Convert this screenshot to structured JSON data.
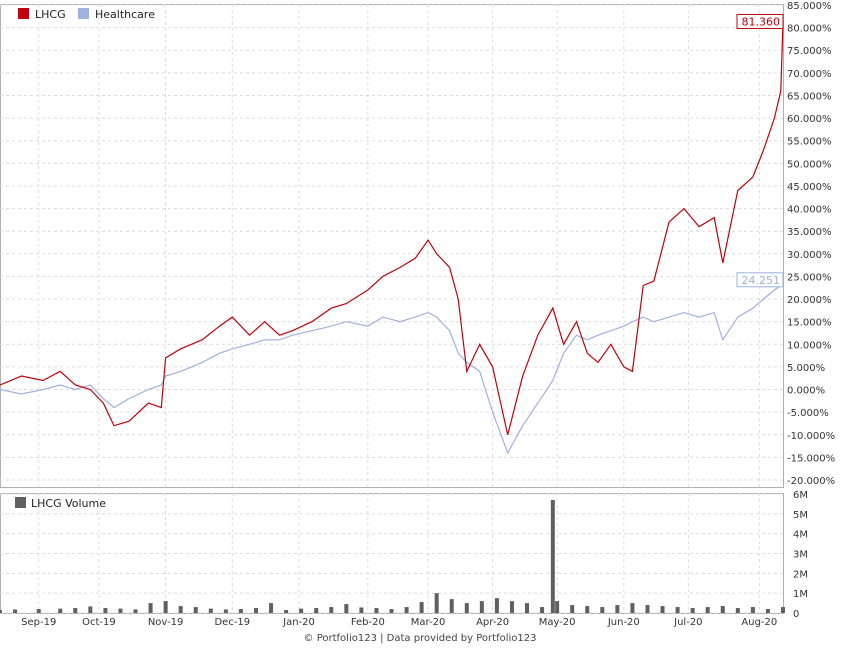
{
  "chart_data": [
    {
      "type": "line",
      "legend_position": "top-left",
      "grid": true,
      "y_format": "percent",
      "ylim": [
        -20,
        85
      ],
      "y_ticks": [
        85,
        80,
        75,
        70,
        65,
        60,
        55,
        50,
        45,
        40,
        35,
        30,
        25,
        20,
        15,
        10,
        5,
        0,
        -5,
        -10,
        -15,
        -20
      ],
      "y_tick_labels": [
        "85.000%",
        "80.000%",
        "75.000%",
        "70.000%",
        "65.000%",
        "60.000%",
        "55.000%",
        "50.000%",
        "45.000%",
        "40.000%",
        "35.000%",
        "30.000%",
        "25.000%",
        "20.000%",
        "15.000%",
        "10.000%",
        "5.000%",
        "0.000%",
        "-5.000%",
        "-10.000%",
        "-15.000%",
        "-20.000%"
      ],
      "x_range": [
        "2019-08-16",
        "2020-08-14"
      ],
      "x_ticks": [
        "2019-09-03",
        "2019-10-01",
        "2019-11-01",
        "2019-12-02",
        "2020-01-02",
        "2020-02-03",
        "2020-03-02",
        "2020-04-01",
        "2020-05-01",
        "2020-06-01",
        "2020-07-01",
        "2020-08-03"
      ],
      "x_tick_labels": [
        "Sep-19",
        "Oct-19",
        "Nov-19",
        "Dec-19",
        "Jan-20",
        "Feb-20",
        "Mar-20",
        "Apr-20",
        "May-20",
        "Jun-20",
        "Jul-20",
        "Aug-20"
      ],
      "series": [
        {
          "name": "LHCG",
          "color": "#c0000c",
          "last_value_label": "81.360",
          "points": [
            [
              "2019-08-16",
              1
            ],
            [
              "2019-08-26",
              3
            ],
            [
              "2019-09-05",
              2
            ],
            [
              "2019-09-13",
              4
            ],
            [
              "2019-09-20",
              1
            ],
            [
              "2019-09-27",
              0
            ],
            [
              "2019-10-03",
              -3
            ],
            [
              "2019-10-08",
              -8
            ],
            [
              "2019-10-15",
              -7
            ],
            [
              "2019-10-24",
              -3
            ],
            [
              "2019-10-30",
              -4
            ],
            [
              "2019-11-01",
              7
            ],
            [
              "2019-11-08",
              9
            ],
            [
              "2019-11-18",
              11
            ],
            [
              "2019-11-26",
              14
            ],
            [
              "2019-12-02",
              16
            ],
            [
              "2019-12-10",
              12
            ],
            [
              "2019-12-17",
              15
            ],
            [
              "2019-12-24",
              12
            ],
            [
              "2019-12-30",
              13
            ],
            [
              "2020-01-08",
              15
            ],
            [
              "2020-01-17",
              18
            ],
            [
              "2020-01-24",
              19
            ],
            [
              "2020-02-03",
              22
            ],
            [
              "2020-02-10",
              25
            ],
            [
              "2020-02-18",
              27
            ],
            [
              "2020-02-25",
              29
            ],
            [
              "2020-03-02",
              33
            ],
            [
              "2020-03-06",
              30
            ],
            [
              "2020-03-12",
              27
            ],
            [
              "2020-03-16",
              20
            ],
            [
              "2020-03-20",
              4
            ],
            [
              "2020-03-26",
              10
            ],
            [
              "2020-04-01",
              5
            ],
            [
              "2020-04-08",
              -10
            ],
            [
              "2020-04-15",
              3
            ],
            [
              "2020-04-22",
              12
            ],
            [
              "2020-04-29",
              18
            ],
            [
              "2020-05-04",
              10
            ],
            [
              "2020-05-10",
              15
            ],
            [
              "2020-05-15",
              8
            ],
            [
              "2020-05-20",
              6
            ],
            [
              "2020-05-26",
              10
            ],
            [
              "2020-06-01",
              5
            ],
            [
              "2020-06-05",
              4
            ],
            [
              "2020-06-10",
              23
            ],
            [
              "2020-06-15",
              24
            ],
            [
              "2020-06-22",
              37
            ],
            [
              "2020-06-29",
              40
            ],
            [
              "2020-07-06",
              36
            ],
            [
              "2020-07-13",
              38
            ],
            [
              "2020-07-17",
              28
            ],
            [
              "2020-07-24",
              44
            ],
            [
              "2020-07-31",
              47
            ],
            [
              "2020-08-05",
              53
            ],
            [
              "2020-08-10",
              60
            ],
            [
              "2020-08-13",
              66
            ],
            [
              "2020-08-14",
              81.36
            ]
          ]
        },
        {
          "name": "Healthcare",
          "color": "#a0b0e0",
          "last_value_label": "24.251",
          "points": [
            [
              "2019-08-16",
              0
            ],
            [
              "2019-08-26",
              -1
            ],
            [
              "2019-09-05",
              0
            ],
            [
              "2019-09-13",
              1
            ],
            [
              "2019-09-20",
              0
            ],
            [
              "2019-09-27",
              1
            ],
            [
              "2019-10-03",
              -2
            ],
            [
              "2019-10-08",
              -4
            ],
            [
              "2019-10-15",
              -2
            ],
            [
              "2019-10-24",
              0
            ],
            [
              "2019-10-30",
              1
            ],
            [
              "2019-11-01",
              3
            ],
            [
              "2019-11-08",
              4
            ],
            [
              "2019-11-18",
              6
            ],
            [
              "2019-11-26",
              8
            ],
            [
              "2019-12-02",
              9
            ],
            [
              "2019-12-10",
              10
            ],
            [
              "2019-12-17",
              11
            ],
            [
              "2019-12-24",
              11
            ],
            [
              "2019-12-30",
              12
            ],
            [
              "2020-01-08",
              13
            ],
            [
              "2020-01-17",
              14
            ],
            [
              "2020-01-24",
              15
            ],
            [
              "2020-02-03",
              14
            ],
            [
              "2020-02-10",
              16
            ],
            [
              "2020-02-18",
              15
            ],
            [
              "2020-02-25",
              16
            ],
            [
              "2020-03-02",
              17
            ],
            [
              "2020-03-06",
              16
            ],
            [
              "2020-03-12",
              13
            ],
            [
              "2020-03-16",
              8
            ],
            [
              "2020-03-20",
              6
            ],
            [
              "2020-03-26",
              4
            ],
            [
              "2020-04-01",
              -5
            ],
            [
              "2020-04-08",
              -14
            ],
            [
              "2020-04-15",
              -8
            ],
            [
              "2020-04-22",
              -3
            ],
            [
              "2020-04-29",
              2
            ],
            [
              "2020-05-04",
              8
            ],
            [
              "2020-05-10",
              12
            ],
            [
              "2020-05-15",
              11
            ],
            [
              "2020-05-20",
              12
            ],
            [
              "2020-05-26",
              13
            ],
            [
              "2020-06-01",
              14
            ],
            [
              "2020-06-05",
              15
            ],
            [
              "2020-06-10",
              16
            ],
            [
              "2020-06-15",
              15
            ],
            [
              "2020-06-22",
              16
            ],
            [
              "2020-06-29",
              17
            ],
            [
              "2020-07-06",
              16
            ],
            [
              "2020-07-13",
              17
            ],
            [
              "2020-07-17",
              11
            ],
            [
              "2020-07-24",
              16
            ],
            [
              "2020-07-31",
              18
            ],
            [
              "2020-08-05",
              20
            ],
            [
              "2020-08-10",
              22
            ],
            [
              "2020-08-13",
              23
            ],
            [
              "2020-08-14",
              24.251
            ]
          ]
        }
      ]
    },
    {
      "type": "bar",
      "legend_position": "top-left",
      "grid": true,
      "series": [
        {
          "name": "LHCG Volume",
          "color": "#606060"
        }
      ],
      "ylim": [
        0,
        6000000
      ],
      "y_ticks": [
        0,
        1000000,
        2000000,
        3000000,
        4000000,
        5000000,
        6000000
      ],
      "y_tick_labels": [
        "0",
        "1M",
        "2M",
        "3M",
        "4M",
        "5M",
        "6M"
      ],
      "x_range": [
        "2019-08-16",
        "2020-08-14"
      ],
      "x_ticks": [
        "2019-09-03",
        "2019-10-01",
        "2019-11-01",
        "2019-12-02",
        "2020-01-02",
        "2020-02-03",
        "2020-03-02",
        "2020-04-01",
        "2020-05-01",
        "2020-06-01",
        "2020-07-01",
        "2020-08-03"
      ],
      "x_tick_labels": [
        "Sep-19",
        "Oct-19",
        "Nov-19",
        "Dec-19",
        "Jan-20",
        "Feb-20",
        "Mar-20",
        "Apr-20",
        "May-20",
        "Jun-20",
        "Jul-20",
        "Aug-20"
      ],
      "bars": [
        [
          "2019-08-16",
          150000
        ],
        [
          "2019-08-23",
          180000
        ],
        [
          "2019-09-03",
          200000
        ],
        [
          "2019-09-13",
          220000
        ],
        [
          "2019-09-20",
          250000
        ],
        [
          "2019-09-27",
          330000
        ],
        [
          "2019-10-04",
          250000
        ],
        [
          "2019-10-11",
          220000
        ],
        [
          "2019-10-18",
          180000
        ],
        [
          "2019-10-25",
          500000
        ],
        [
          "2019-11-01",
          600000
        ],
        [
          "2019-11-08",
          350000
        ],
        [
          "2019-11-15",
          300000
        ],
        [
          "2019-11-22",
          220000
        ],
        [
          "2019-11-29",
          180000
        ],
        [
          "2019-12-06",
          200000
        ],
        [
          "2019-12-13",
          250000
        ],
        [
          "2019-12-20",
          500000
        ],
        [
          "2019-12-27",
          150000
        ],
        [
          "2020-01-03",
          220000
        ],
        [
          "2020-01-10",
          250000
        ],
        [
          "2020-01-17",
          300000
        ],
        [
          "2020-01-24",
          450000
        ],
        [
          "2020-01-31",
          280000
        ],
        [
          "2020-02-07",
          250000
        ],
        [
          "2020-02-14",
          200000
        ],
        [
          "2020-02-21",
          300000
        ],
        [
          "2020-02-28",
          550000
        ],
        [
          "2020-03-06",
          1000000
        ],
        [
          "2020-03-13",
          700000
        ],
        [
          "2020-03-20",
          500000
        ],
        [
          "2020-03-27",
          600000
        ],
        [
          "2020-04-03",
          750000
        ],
        [
          "2020-04-10",
          600000
        ],
        [
          "2020-04-17",
          500000
        ],
        [
          "2020-04-24",
          300000
        ],
        [
          "2020-04-29",
          5700000
        ],
        [
          "2020-05-01",
          600000
        ],
        [
          "2020-05-08",
          400000
        ],
        [
          "2020-05-15",
          350000
        ],
        [
          "2020-05-22",
          300000
        ],
        [
          "2020-05-29",
          400000
        ],
        [
          "2020-06-05",
          500000
        ],
        [
          "2020-06-12",
          400000
        ],
        [
          "2020-06-19",
          350000
        ],
        [
          "2020-06-26",
          300000
        ],
        [
          "2020-07-03",
          250000
        ],
        [
          "2020-07-10",
          300000
        ],
        [
          "2020-07-17",
          350000
        ],
        [
          "2020-07-24",
          250000
        ],
        [
          "2020-07-31",
          300000
        ],
        [
          "2020-08-07",
          200000
        ],
        [
          "2020-08-14",
          300000
        ]
      ]
    }
  ],
  "footer": "© Portfolio123 | Data provided by Portfolio123"
}
